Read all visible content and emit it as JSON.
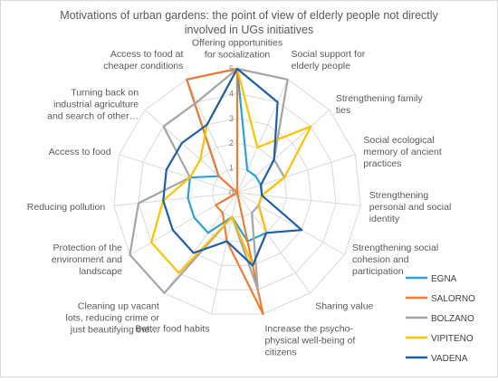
{
  "chart_data": {
    "type": "radar",
    "title_lines": [
      "Motivations of urban gardens: the point of view of elderly people not directly",
      "involved in UGs initiatives"
    ],
    "range": [
      0,
      5
    ],
    "ticks": [
      "0",
      "1",
      "2",
      "3",
      "4",
      "5"
    ],
    "categories": [
      [
        "Offering opportunities",
        "for socialization"
      ],
      [
        "Social support for",
        "elderly people"
      ],
      [
        "Strengthening family",
        "ties"
      ],
      [
        "Social ecological",
        "memory of ancient",
        "practices"
      ],
      [
        "Strengthening",
        "personal and social",
        "identity"
      ],
      [
        "Strengthening social",
        "cohesion and",
        "participation"
      ],
      [
        "Sharing value"
      ],
      [
        "Increase the psycho-",
        "physical well-being of",
        "citizens"
      ],
      [
        "Better food habits"
      ],
      [
        "Cleaning up vacant",
        "lots, reducing crime or",
        "just beautifying the…"
      ],
      [
        "Protection of the",
        "environment and",
        "landscape"
      ],
      [
        "Reducing pollution"
      ],
      [
        "Access to food"
      ],
      [
        "Turning back on",
        "industrial agriculture",
        "and search of other…"
      ],
      [
        "Access to food at",
        "cheaper conditions"
      ]
    ],
    "series": [
      {
        "name": "EGNA",
        "color": "#2E9FD8",
        "values": [
          5,
          1,
          1,
          1,
          1,
          1,
          2,
          2,
          1,
          2,
          2,
          2,
          2,
          1,
          5
        ]
      },
      {
        "name": "SALORNO",
        "color": "#ED7D31",
        "values": [
          5,
          0,
          0,
          0,
          0,
          0,
          0,
          5,
          2,
          1,
          1,
          0,
          0,
          1,
          5
        ]
      },
      {
        "name": "BOLZANO",
        "color": "#A5A5A5",
        "values": [
          5,
          5,
          2,
          2,
          1,
          1,
          1,
          4,
          1,
          5,
          5,
          4,
          2,
          4,
          4
        ]
      },
      {
        "name": "VIPITENO",
        "color": "#FFC000",
        "values": [
          5,
          2,
          4,
          2,
          1,
          1,
          2,
          3,
          1,
          4,
          4,
          3,
          2,
          2,
          3
        ]
      },
      {
        "name": "VADENA",
        "color": "#1F5FA8",
        "values": [
          5,
          4,
          2,
          1,
          1,
          3,
          2,
          3,
          2,
          3,
          3,
          3,
          3,
          3,
          3
        ]
      }
    ]
  }
}
